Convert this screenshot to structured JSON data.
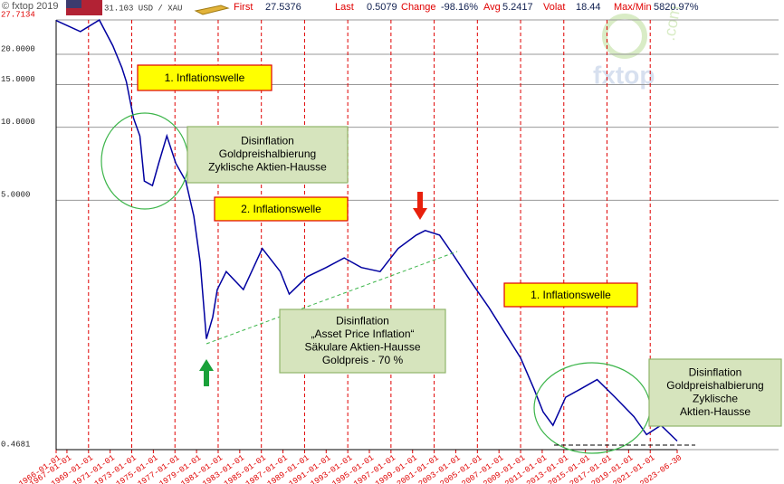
{
  "header": {
    "copyright": "© fxtop 2019",
    "unit": "31.103 USD / XAU",
    "stats": [
      {
        "label": "First",
        "value": "27.5376"
      },
      {
        "label": "Last",
        "value": "0.5079"
      },
      {
        "label": "Change",
        "value": "-98.16%"
      },
      {
        "label": "Avg",
        "value": "5.2417"
      },
      {
        "label": "Volat",
        "value": "18.44"
      },
      {
        "label": "Max/Min",
        "value": "5820.97%"
      }
    ],
    "watermark": "fxtop",
    "watermark_suffix": ".com"
  },
  "chart_data": {
    "type": "line",
    "color": "#0000a0",
    "log_y": true,
    "grid": true,
    "x": [
      "1966-01-01",
      "1968-04-01",
      "1970-01-01",
      "1971-04-01",
      "1972-02-01",
      "1972-07-01",
      "1973-03-01",
      "1973-10-01",
      "1974-03-01",
      "1974-12-01",
      "1975-07-01",
      "1976-04-01",
      "1977-02-01",
      "1978-01-01",
      "1978-10-01",
      "1979-05-01",
      "1979-12-01",
      "1980-07-01",
      "1980-12-01",
      "1981-10-01",
      "1983-05-01",
      "1985-02-01",
      "1986-10-01",
      "1987-08-01",
      "1989-04-01",
      "1991-01-01",
      "1992-09-01",
      "1994-04-01",
      "1996-01-01",
      "1997-09-01",
      "1999-05-01",
      "2000-03-01",
      "2001-07-01",
      "2002-09-01",
      "2004-05-01",
      "2006-02-01",
      "2007-09-01",
      "2009-01-01",
      "2010-04-01",
      "2011-02-01",
      "2012-01-01",
      "2013-03-01",
      "2014-07-01",
      "2016-02-01",
      "2017-10-01",
      "2019-07-01",
      "2020-09-01",
      "2022-01-01",
      "2023-06-30"
    ],
    "values": [
      27.5376,
      24.8,
      27.7,
      21.7,
      17.6,
      15.4,
      10.9,
      9.2,
      6.0,
      5.75,
      7.1,
      9.2,
      7.1,
      6.0,
      4.3,
      2.78,
      1.34,
      1.65,
      2.14,
      2.54,
      2.14,
      3.16,
      2.54,
      2.05,
      2.42,
      2.64,
      2.89,
      2.64,
      2.54,
      3.16,
      3.59,
      3.75,
      3.59,
      3.02,
      2.33,
      1.8,
      1.39,
      1.12,
      0.83,
      0.67,
      0.59,
      0.77,
      0.83,
      0.91,
      0.77,
      0.64,
      0.54,
      0.59,
      0.5079
    ],
    "xlim": [
      "1966-01-01",
      "2023-06-30"
    ],
    "xticks": [
      "1966-01-01",
      "1967-01-01",
      "1969-01-01",
      "1971-01-01",
      "1973-01-01",
      "1975-01-01",
      "1977-01-01",
      "1979-01-01",
      "1981-01-01",
      "1983-01-01",
      "1985-01-01",
      "1987-01-01",
      "1989-01-01",
      "1991-01-01",
      "1993-01-01",
      "1995-01-01",
      "1997-01-01",
      "1999-01-01",
      "2001-01-01",
      "2003-01-01",
      "2005-01-01",
      "2007-01-01",
      "2009-01-01",
      "2011-01-01",
      "2013-01-01",
      "2015-01-01",
      "2017-01-01",
      "2019-01-01",
      "2021-01-01",
      "2023-06-30"
    ],
    "ylim": [
      0.4681,
      27.7134
    ],
    "yticks": [
      27.7134,
      {
        "value": 20,
        "label": "20.0000"
      },
      {
        "value": 15,
        "label": "15.0000"
      },
      {
        "value": 10,
        "label": "10.0000"
      },
      {
        "value": 5,
        "label": "5.0000"
      },
      0.4681
    ],
    "inflation_labels": [
      "1. Inflationswelle",
      "2. Inflationswelle",
      "1. Inflationswelle"
    ],
    "disinflation_notes": [
      [
        "Disinflation",
        "Goldpreishalbierung",
        "Zyklische Aktien-Hausse"
      ],
      [
        "Disinflation",
        "„Asset Price Inflation“",
        "Säkulare Aktien-Hausse",
        "Goldpreis - 70 %"
      ],
      [
        "Disinflation",
        "Goldpreishalbierung",
        "Zyklische",
        "Aktien-Hausse"
      ]
    ]
  }
}
